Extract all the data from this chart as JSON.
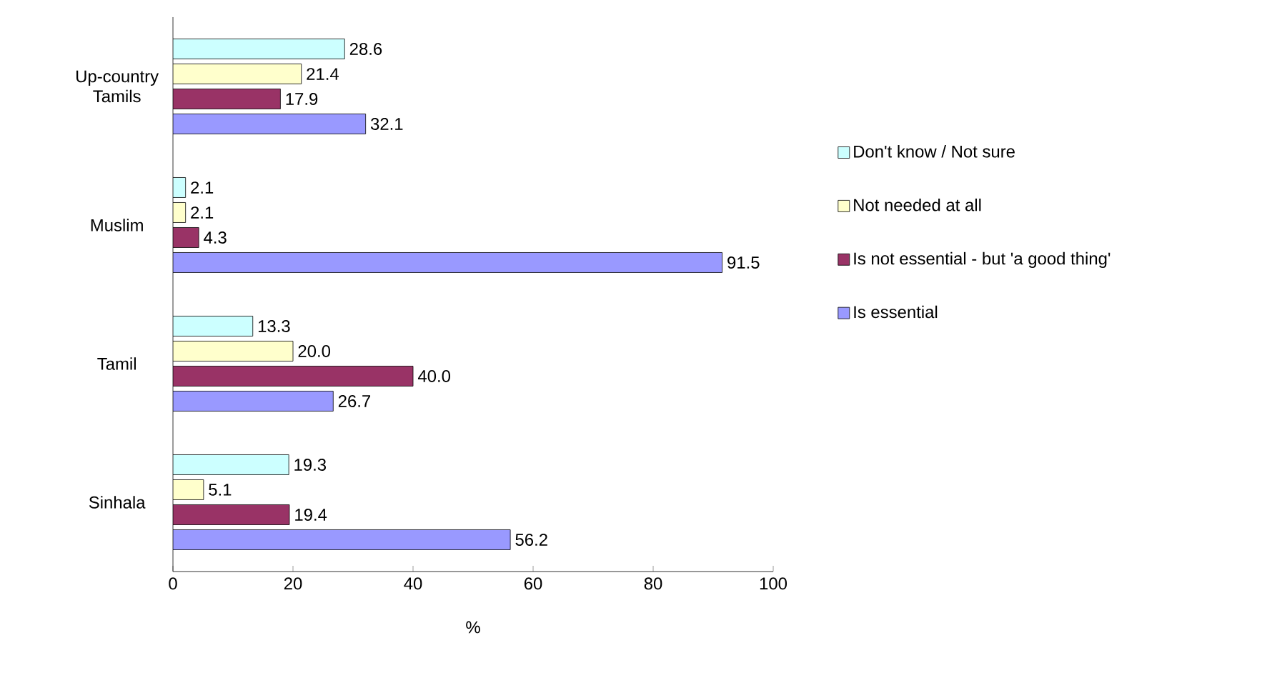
{
  "chart_data": {
    "type": "bar",
    "orientation": "horizontal",
    "categories": [
      "Up-country Tamils",
      "Muslim",
      "Tamil",
      "Sinhala"
    ],
    "series": [
      {
        "name": "Don't know / Not sure",
        "color": "#ccffff",
        "values": [
          28.6,
          2.1,
          13.3,
          19.3
        ],
        "value_labels": [
          "28.6",
          "2.1",
          "13.3",
          "19.3"
        ]
      },
      {
        "name": "Not needed at all",
        "color": "#ffffcc",
        "values": [
          21.4,
          2.1,
          20.0,
          5.1
        ],
        "value_labels": [
          "21.4",
          "2.1",
          "20.0",
          "5.1"
        ]
      },
      {
        "name": "Is not essential - but 'a good thing'",
        "color": "#993366",
        "values": [
          17.9,
          4.3,
          40.0,
          19.4
        ],
        "value_labels": [
          "17.9",
          "4.3",
          "40.0",
          "19.4"
        ]
      },
      {
        "name": "Is essential",
        "color": "#9999ff",
        "values": [
          32.1,
          91.5,
          26.7,
          56.2
        ],
        "value_labels": [
          "32.1",
          "91.5",
          "26.7",
          "56.2"
        ]
      }
    ],
    "xlim": [
      0,
      100
    ],
    "xticks": [
      0,
      20,
      40,
      60,
      80,
      100
    ],
    "xlabel": "%",
    "legend": "right"
  }
}
